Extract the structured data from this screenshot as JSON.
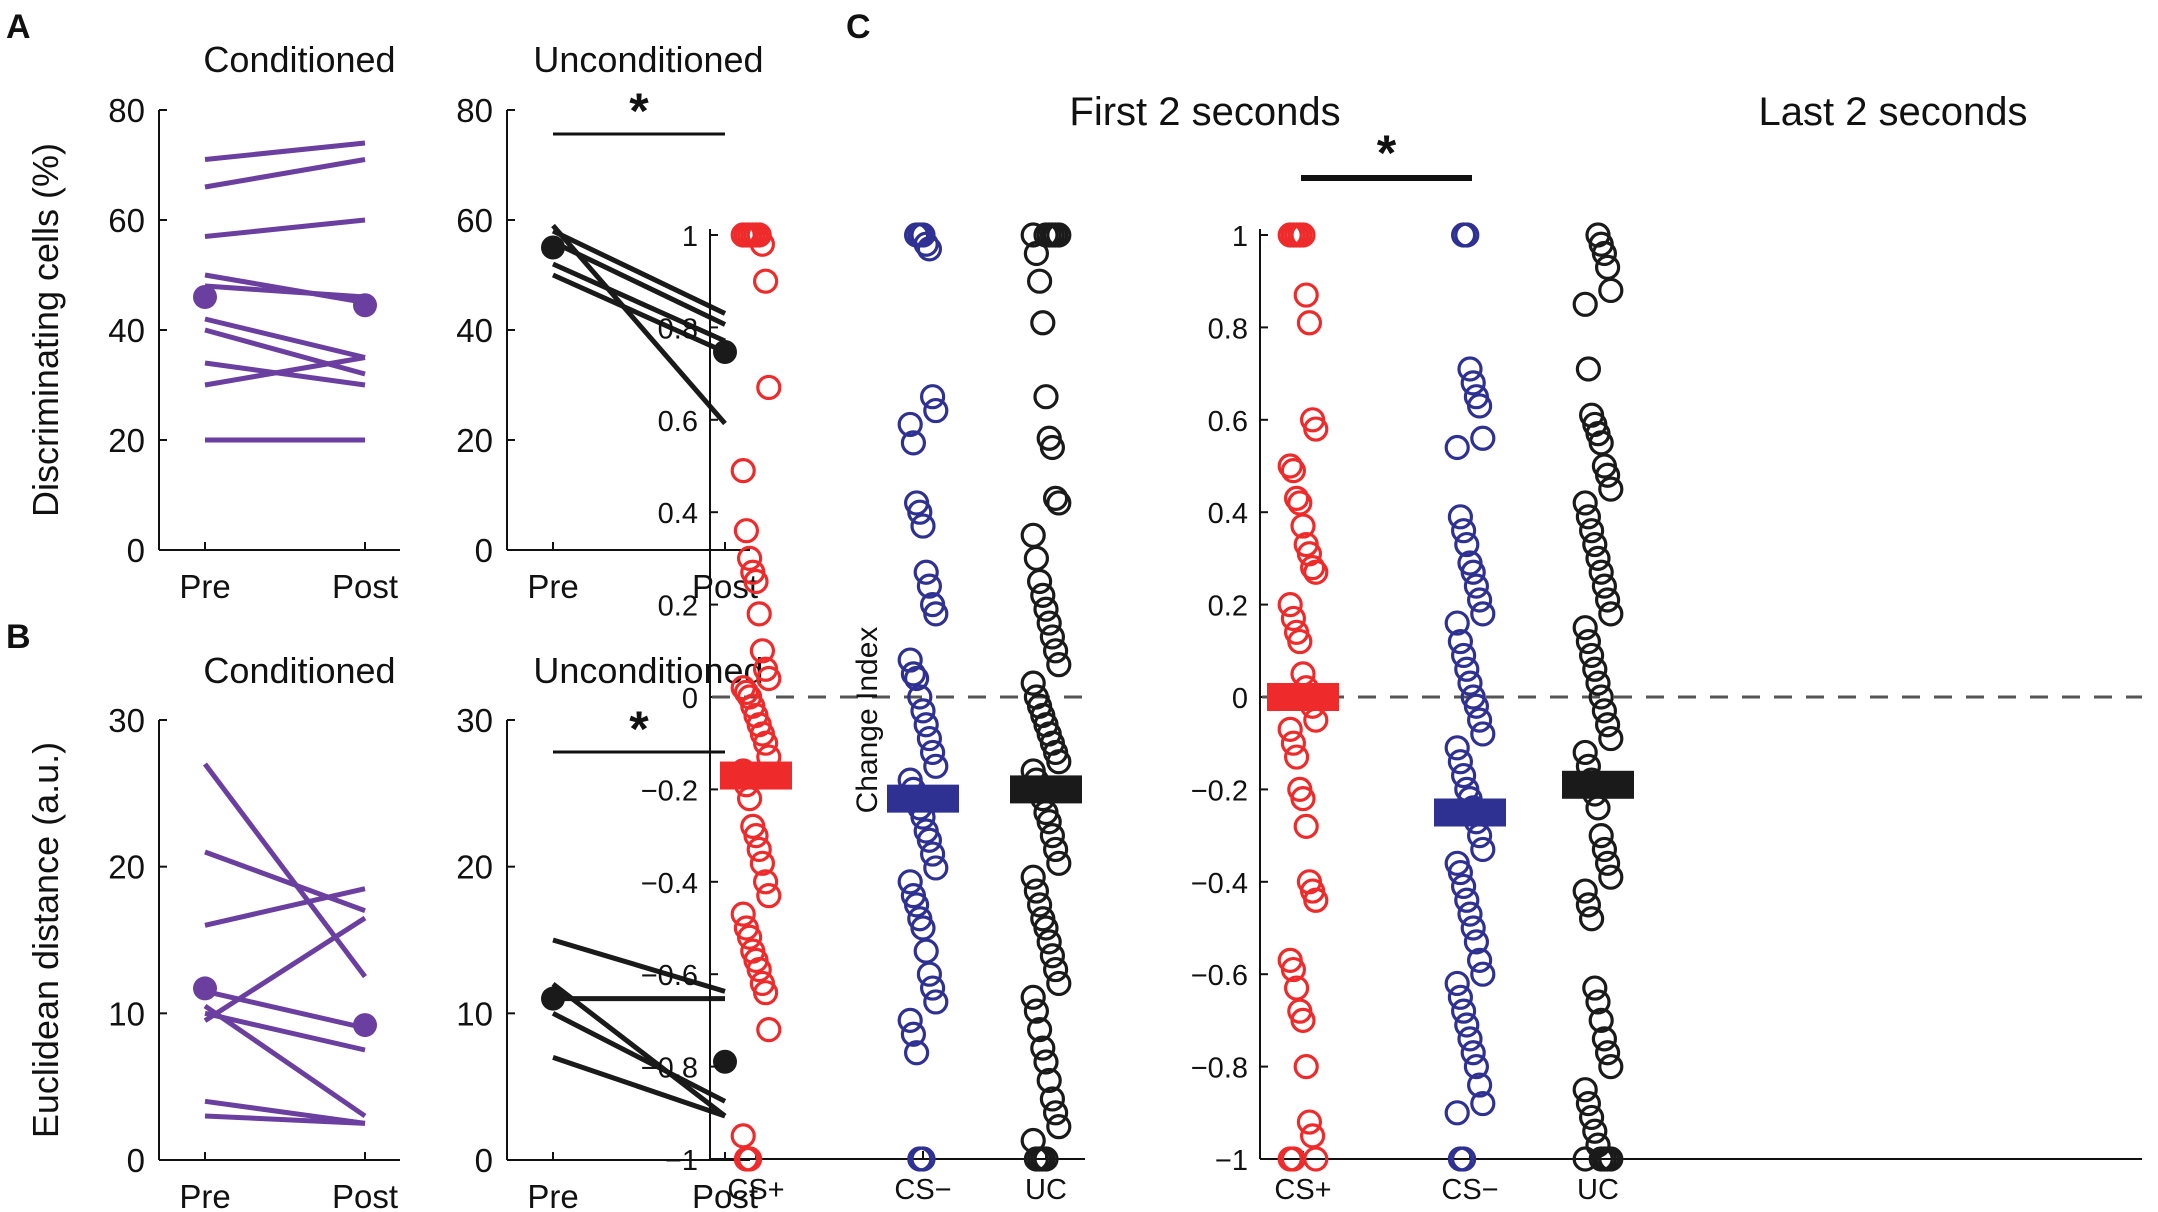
{
  "panel_labels": {
    "A": "A",
    "B": "B",
    "C": "C"
  },
  "sig_marker": "*",
  "colors": {
    "purple": "#6B3FA0",
    "black": "#1a1a1a",
    "red": "#EE2A2A",
    "blue": "#2E3192",
    "dash": "#555555"
  },
  "chart_data": [
    {
      "id": "A-conditioned",
      "type": "line",
      "title": "Conditioned",
      "ylabel": "Discriminating cells (%)",
      "ylim": [
        0,
        80
      ],
      "yticks": [
        0,
        20,
        40,
        60,
        80
      ],
      "categories": [
        "Pre",
        "Post"
      ],
      "color": "purple",
      "series": [
        {
          "name": "cell-1",
          "values": [
            71,
            74
          ]
        },
        {
          "name": "cell-2",
          "values": [
            66,
            71
          ]
        },
        {
          "name": "cell-3",
          "values": [
            57,
            60
          ]
        },
        {
          "name": "cell-4",
          "values": [
            50,
            45
          ]
        },
        {
          "name": "cell-5",
          "values": [
            48,
            46
          ]
        },
        {
          "name": "cell-6",
          "values": [
            42,
            35
          ]
        },
        {
          "name": "cell-7",
          "values": [
            40,
            32
          ]
        },
        {
          "name": "cell-8",
          "values": [
            34,
            30
          ]
        },
        {
          "name": "cell-9",
          "values": [
            30,
            35
          ]
        },
        {
          "name": "cell-10",
          "values": [
            20,
            20
          ]
        }
      ],
      "mean": [
        46,
        44.5
      ],
      "significant": false
    },
    {
      "id": "A-unconditioned",
      "type": "line",
      "title": "Unconditioned",
      "ylabel": "",
      "ylim": [
        0,
        80
      ],
      "yticks": [
        0,
        20,
        40,
        60,
        80
      ],
      "categories": [
        "Pre",
        "Post"
      ],
      "color": "black",
      "series": [
        {
          "name": "cell-1",
          "values": [
            59,
            23
          ]
        },
        {
          "name": "cell-2",
          "values": [
            58,
            43
          ]
        },
        {
          "name": "cell-3",
          "values": [
            56,
            41
          ]
        },
        {
          "name": "cell-4",
          "values": [
            52,
            38
          ]
        },
        {
          "name": "cell-5",
          "values": [
            50,
            36
          ]
        }
      ],
      "mean": [
        55,
        36
      ],
      "significant": true
    },
    {
      "id": "B-conditioned",
      "type": "line",
      "title": "Conditioned",
      "ylabel": "Euclidean distance (a.u.)",
      "ylim": [
        0,
        30
      ],
      "yticks": [
        0,
        10,
        20,
        30
      ],
      "categories": [
        "Pre",
        "Post"
      ],
      "color": "purple",
      "series": [
        {
          "name": "cell-1",
          "values": [
            27,
            12.5
          ]
        },
        {
          "name": "cell-2",
          "values": [
            21,
            17
          ]
        },
        {
          "name": "cell-3",
          "values": [
            16,
            18.5
          ]
        },
        {
          "name": "cell-4",
          "values": [
            11.5,
            9
          ]
        },
        {
          "name": "cell-5",
          "values": [
            10.5,
            3
          ]
        },
        {
          "name": "cell-6",
          "values": [
            10,
            7.5
          ]
        },
        {
          "name": "cell-7",
          "values": [
            9.5,
            16.5
          ]
        },
        {
          "name": "cell-8",
          "values": [
            4,
            2.5
          ]
        },
        {
          "name": "cell-9",
          "values": [
            3,
            2.5
          ]
        }
      ],
      "mean": [
        11.7,
        9.2
      ],
      "significant": false
    },
    {
      "id": "B-unconditioned",
      "type": "line",
      "title": "Unconditioned",
      "ylabel": "",
      "ylim": [
        0,
        30
      ],
      "yticks": [
        0,
        10,
        20,
        30
      ],
      "categories": [
        "Pre",
        "Post"
      ],
      "color": "black",
      "series": [
        {
          "name": "cell-1",
          "values": [
            15,
            11.5
          ]
        },
        {
          "name": "cell-2",
          "values": [
            12,
            3
          ]
        },
        {
          "name": "cell-3",
          "values": [
            11,
            11
          ]
        },
        {
          "name": "cell-4",
          "values": [
            10,
            4
          ]
        },
        {
          "name": "cell-5",
          "values": [
            7,
            3
          ]
        }
      ],
      "mean": [
        11,
        6.7
      ],
      "significant": true
    },
    {
      "id": "C-first",
      "type": "scatter",
      "title": "First 2 seconds",
      "ylabel": "Change Index",
      "ylim": [
        -1,
        1
      ],
      "yticks": [
        -1,
        -0.8,
        -0.6,
        -0.4,
        -0.2,
        0,
        0.2,
        0.4,
        0.6,
        0.8,
        1
      ],
      "ytick_labels": [
        "−1",
        "−0.8",
        "−0.6",
        "−0.4",
        "−0.2",
        "0",
        "0.2",
        "0.4",
        "0.6",
        "0.8",
        "1"
      ],
      "categories": [
        "CS+",
        "CS−",
        "UC"
      ],
      "groups": [
        {
          "name": "CS+",
          "color": "red",
          "mean": -0.17,
          "values": [
            1,
            1,
            1,
            1,
            1,
            1,
            0.98,
            0.9,
            0.67,
            0.49,
            0.36,
            0.3,
            0.27,
            0.25,
            0.18,
            0.1,
            0.06,
            0.04,
            0.02,
            0.01,
            0,
            -0.02,
            -0.04,
            -0.06,
            -0.08,
            -0.1,
            -0.13,
            -0.16,
            -0.19,
            -0.22,
            -0.28,
            -0.3,
            -0.33,
            -0.36,
            -0.4,
            -0.43,
            -0.47,
            -0.5,
            -0.52,
            -0.55,
            -0.57,
            -0.59,
            -0.62,
            -0.64,
            -0.72,
            -0.95,
            -1,
            -1
          ]
        },
        {
          "name": "CS−",
          "color": "blue",
          "mean": -0.22,
          "values": [
            1,
            1,
            1,
            0.98,
            0.97,
            0.65,
            0.62,
            0.59,
            0.55,
            0.42,
            0.4,
            0.37,
            0.27,
            0.24,
            0.2,
            0.18,
            0.08,
            0.05,
            0.04,
            0,
            -0.03,
            -0.06,
            -0.09,
            -0.12,
            -0.15,
            -0.18,
            -0.2,
            -0.22,
            -0.24,
            -0.26,
            -0.29,
            -0.31,
            -0.34,
            -0.37,
            -0.4,
            -0.43,
            -0.45,
            -0.48,
            -0.5,
            -0.55,
            -0.6,
            -0.63,
            -0.66,
            -0.7,
            -0.73,
            -0.77,
            -1,
            -1
          ]
        },
        {
          "name": "UC",
          "color": "black",
          "mean": -0.2,
          "values": [
            1,
            1,
            1,
            1,
            1,
            1,
            0.96,
            0.9,
            0.81,
            0.65,
            0.56,
            0.54,
            0.43,
            0.42,
            0.35,
            0.3,
            0.25,
            0.22,
            0.19,
            0.16,
            0.13,
            0.1,
            0.07,
            0.03,
            0,
            -0.02,
            -0.04,
            -0.06,
            -0.08,
            -0.1,
            -0.12,
            -0.14,
            -0.16,
            -0.18,
            -0.2,
            -0.22,
            -0.25,
            -0.27,
            -0.3,
            -0.33,
            -0.36,
            -0.39,
            -0.42,
            -0.45,
            -0.48,
            -0.5,
            -0.53,
            -0.56,
            -0.59,
            -0.62,
            -0.65,
            -0.68,
            -0.72,
            -0.76,
            -0.79,
            -0.83,
            -0.87,
            -0.9,
            -0.93,
            -0.96,
            -1,
            -1,
            -1,
            -1
          ]
        }
      ],
      "significance": null
    },
    {
      "id": "C-last",
      "type": "scatter",
      "title": "Last 2 seconds",
      "ylabel": "",
      "ylim": [
        -1,
        1
      ],
      "yticks": [
        -1,
        -0.8,
        -0.6,
        -0.4,
        -0.2,
        0,
        0.2,
        0.4,
        0.6,
        0.8,
        1
      ],
      "ytick_labels": [
        "−1",
        "−0.8",
        "−0.6",
        "−0.4",
        "−0.2",
        "0",
        "0.2",
        "0.4",
        "0.6",
        "0.8",
        "1"
      ],
      "categories": [
        "CS+",
        "CS−",
        "UC"
      ],
      "groups": [
        {
          "name": "CS+",
          "color": "red",
          "mean": 0,
          "values": [
            1,
            1,
            1,
            1,
            1,
            0.87,
            0.81,
            0.6,
            0.58,
            0.5,
            0.49,
            0.43,
            0.42,
            0.37,
            0.33,
            0.31,
            0.28,
            0.27,
            0.2,
            0.17,
            0.14,
            0.12,
            0.05,
            0.02,
            0,
            -0.02,
            -0.05,
            -0.07,
            -0.1,
            -0.13,
            -0.2,
            -0.22,
            -0.28,
            -0.4,
            -0.42,
            -0.44,
            -0.57,
            -0.59,
            -0.63,
            -0.68,
            -0.7,
            -0.8,
            -0.92,
            -0.95,
            -1,
            -1,
            -1
          ]
        },
        {
          "name": "CS−",
          "color": "blue",
          "mean": -0.25,
          "values": [
            1,
            1,
            0.71,
            0.68,
            0.65,
            0.63,
            0.56,
            0.54,
            0.39,
            0.36,
            0.33,
            0.29,
            0.27,
            0.24,
            0.21,
            0.18,
            0.16,
            0.12,
            0.09,
            0.06,
            0.03,
            0,
            -0.02,
            -0.05,
            -0.08,
            -0.11,
            -0.14,
            -0.17,
            -0.2,
            -0.22,
            -0.24,
            -0.27,
            -0.3,
            -0.33,
            -0.36,
            -0.38,
            -0.41,
            -0.44,
            -0.47,
            -0.5,
            -0.53,
            -0.57,
            -0.6,
            -0.62,
            -0.65,
            -0.68,
            -0.71,
            -0.74,
            -0.77,
            -0.8,
            -0.84,
            -0.88,
            -0.9,
            -1,
            -1
          ]
        },
        {
          "name": "UC",
          "color": "black",
          "mean": -0.19,
          "values": [
            1,
            0.98,
            0.96,
            0.93,
            0.88,
            0.85,
            0.71,
            0.61,
            0.59,
            0.57,
            0.55,
            0.5,
            0.48,
            0.45,
            0.42,
            0.39,
            0.36,
            0.33,
            0.3,
            0.27,
            0.24,
            0.21,
            0.18,
            0.15,
            0.12,
            0.09,
            0.06,
            0.03,
            0,
            -0.03,
            -0.06,
            -0.09,
            -0.12,
            -0.15,
            -0.18,
            -0.21,
            -0.24,
            -0.3,
            -0.33,
            -0.36,
            -0.39,
            -0.42,
            -0.45,
            -0.48,
            -0.63,
            -0.66,
            -0.7,
            -0.74,
            -0.77,
            -0.8,
            -0.85,
            -0.88,
            -0.91,
            -0.94,
            -0.97,
            -1,
            -1,
            -1,
            -1,
            -1
          ]
        }
      ],
      "significance": {
        "from": 0,
        "to": 1
      }
    }
  ]
}
